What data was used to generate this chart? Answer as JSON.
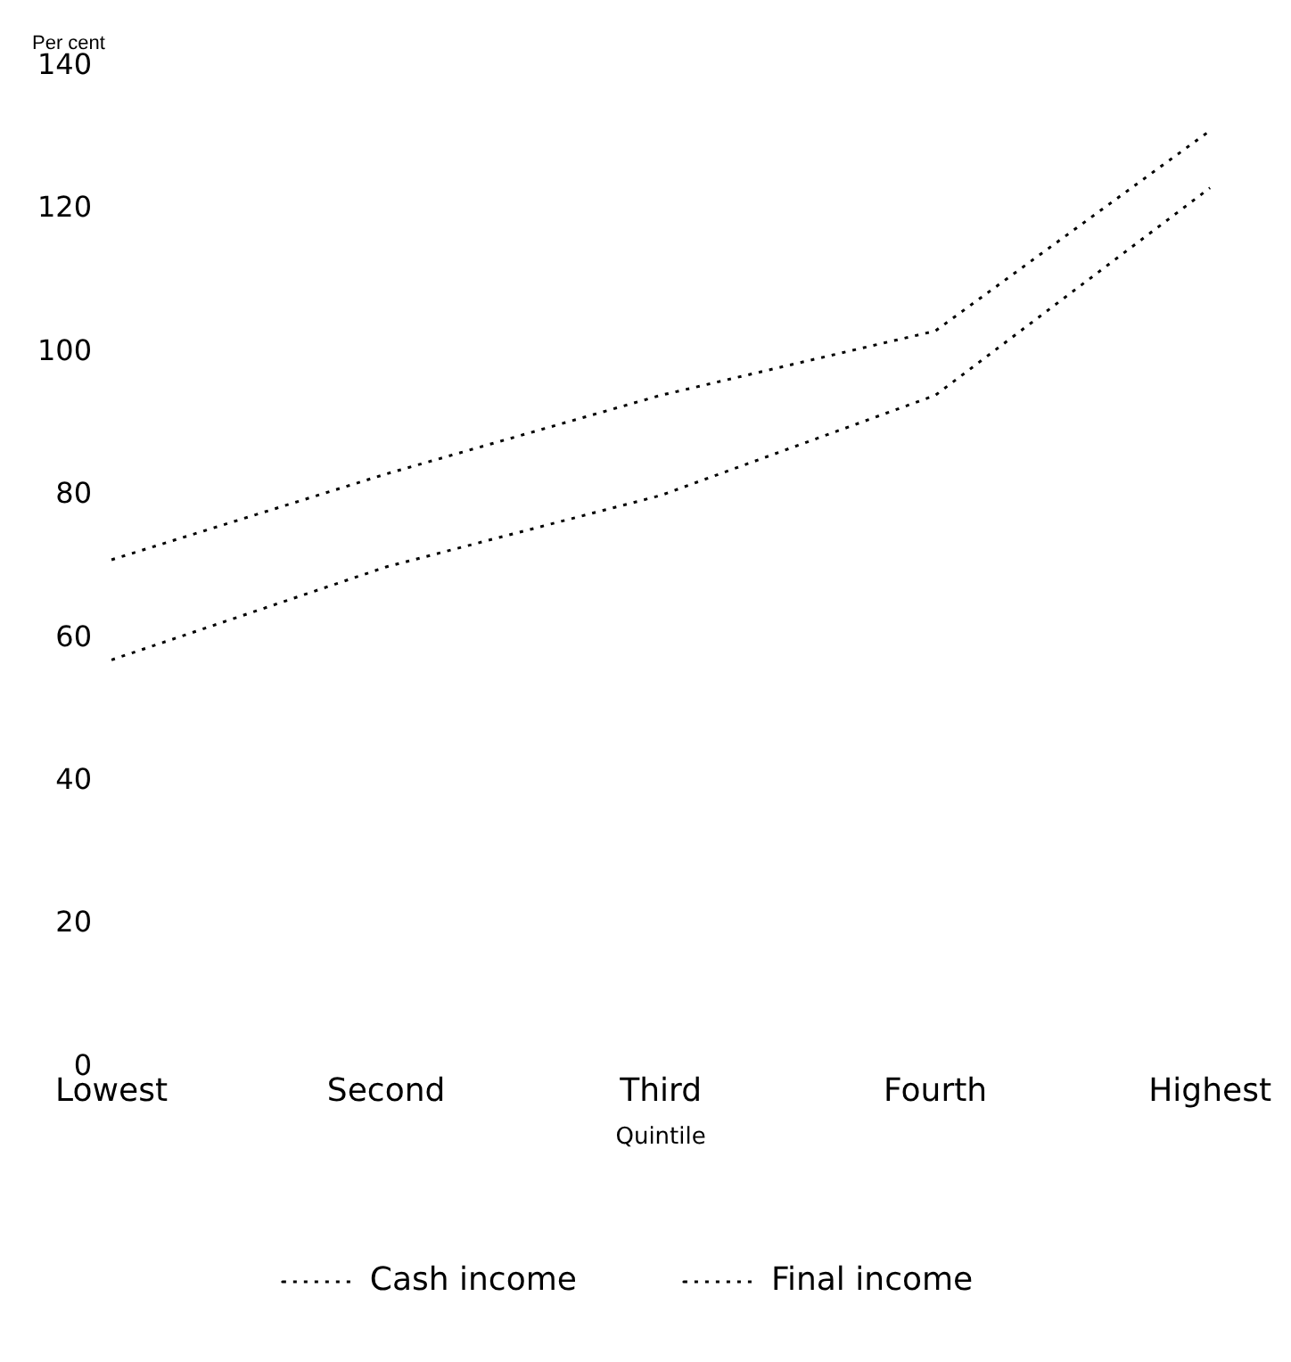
{
  "chart_data": {
    "type": "line",
    "ylabel": "Per cent",
    "xlabel": "Quintile",
    "categories": [
      "Lowest",
      "Second",
      "Third",
      "Fourth",
      "Highest"
    ],
    "series": [
      {
        "name": "Cash income",
        "color": "#000000",
        "values": [
          71,
          83,
          94,
          103,
          131
        ]
      },
      {
        "name": "Final income",
        "color": "#000000",
        "values": [
          57,
          70,
          80,
          94,
          123
        ]
      }
    ],
    "ylim": [
      0,
      140
    ],
    "yticks": [
      0,
      20,
      40,
      60,
      80,
      100,
      120,
      140
    ],
    "legend": "bottom",
    "marker": "none",
    "line_style": "dotted",
    "grid": false
  }
}
